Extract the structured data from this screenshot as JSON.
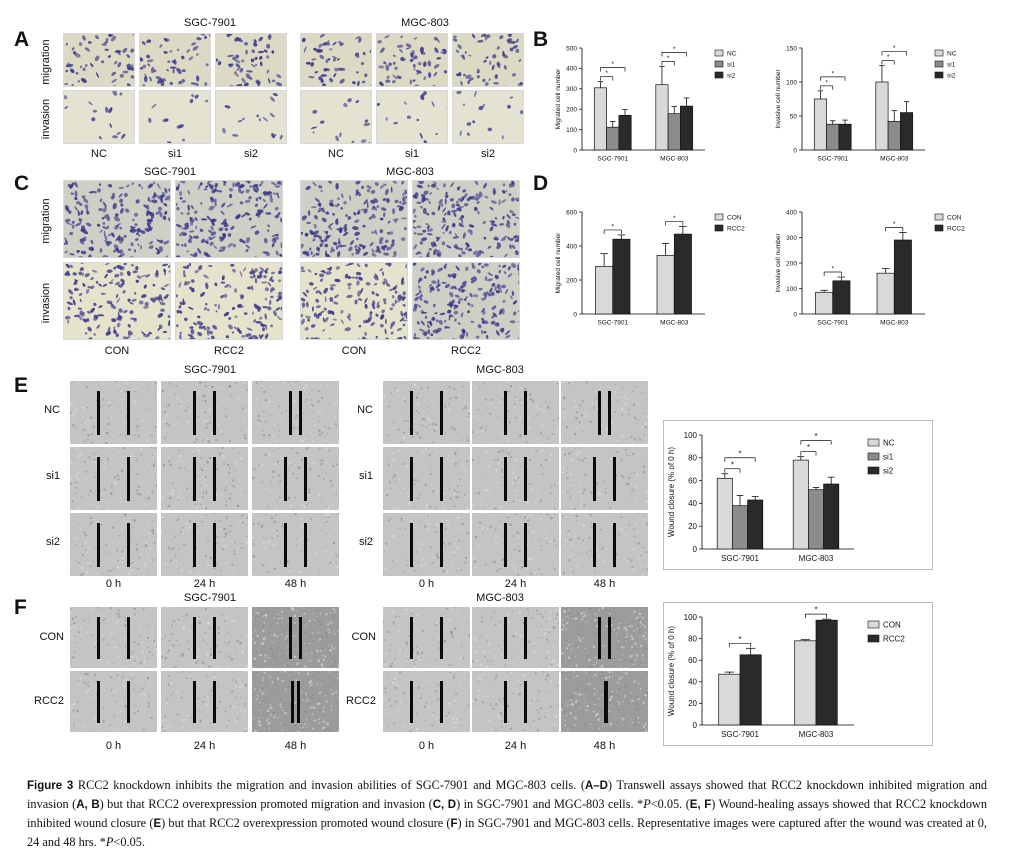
{
  "panels": {
    "A": {
      "letter": "A",
      "headers": [
        "SGC-7901",
        "MGC-803"
      ],
      "row_labels": [
        "migration",
        "invasion"
      ],
      "col_labels": [
        "NC",
        "si1",
        "si2",
        "NC",
        "si1",
        "si2"
      ]
    },
    "B": {
      "letter": "B"
    },
    "C": {
      "letter": "C",
      "headers": [
        "SGC-7901",
        "MGC-803"
      ],
      "row_labels": [
        "migration",
        "invasion"
      ],
      "col_labels": [
        "CON",
        "RCC2",
        "CON",
        "RCC2"
      ]
    },
    "D": {
      "letter": "D"
    },
    "E": {
      "letter": "E",
      "headers": [
        "SGC-7901",
        "MGC-803"
      ],
      "row_labels": [
        "NC",
        "si1",
        "si2"
      ],
      "col_labels": [
        "0 h",
        "24 h",
        "48 h"
      ]
    },
    "F": {
      "letter": "F",
      "headers": [
        "SGC-7901",
        "MGC-803"
      ],
      "row_labels": [
        "CON",
        "RCC2"
      ],
      "col_labels": [
        "0 h",
        "24 h",
        "48 h"
      ]
    }
  },
  "colors": {
    "light_bar": "#d9d9d9",
    "mid_bar": "#8c8c8c",
    "dark_bar": "#2a2a2a",
    "stain": "#3b3a8c"
  },
  "chart_data": [
    {
      "id": "B1",
      "type": "bar",
      "ylabel": "Migrated cell number",
      "categories": [
        "SGC-7901",
        "MGC-803"
      ],
      "ylim": [
        0,
        500
      ],
      "yticks": [
        0,
        100,
        200,
        300,
        400,
        500
      ],
      "series": [
        {
          "name": "NC",
          "values": [
            305,
            320
          ],
          "errors": [
            30,
            90
          ]
        },
        {
          "name": "si1",
          "values": [
            112,
            178
          ],
          "errors": [
            28,
            35
          ]
        },
        {
          "name": "si2",
          "values": [
            170,
            215
          ],
          "errors": [
            28,
            40
          ]
        }
      ],
      "sig": [
        {
          "cat": 0,
          "a": 0,
          "b": 1,
          "level": 0
        },
        {
          "cat": 0,
          "a": 0,
          "b": 2,
          "level": 1
        },
        {
          "cat": 1,
          "a": 0,
          "b": 1,
          "level": 0
        },
        {
          "cat": 1,
          "a": 0,
          "b": 2,
          "level": 1
        }
      ],
      "sig_label": "*",
      "legend": "right"
    },
    {
      "id": "B2",
      "type": "bar",
      "ylabel": "Invasive cell number",
      "categories": [
        "SGC-7901",
        "MGC-803"
      ],
      "ylim": [
        0,
        150
      ],
      "yticks": [
        0,
        50,
        100,
        150
      ],
      "series": [
        {
          "name": "NC",
          "values": [
            75,
            100
          ],
          "errors": [
            12,
            24
          ]
        },
        {
          "name": "si1",
          "values": [
            38,
            42
          ],
          "errors": [
            5,
            16
          ]
        },
        {
          "name": "si2",
          "values": [
            38,
            55
          ],
          "errors": [
            6,
            16
          ]
        }
      ],
      "sig": [
        {
          "cat": 0,
          "a": 0,
          "b": 1,
          "level": 0
        },
        {
          "cat": 0,
          "a": 0,
          "b": 2,
          "level": 1
        },
        {
          "cat": 1,
          "a": 0,
          "b": 1,
          "level": 0
        },
        {
          "cat": 1,
          "a": 0,
          "b": 2,
          "level": 1
        }
      ],
      "sig_label": "*",
      "legend": "right"
    },
    {
      "id": "D1",
      "type": "bar",
      "ylabel": "Migrated cell number",
      "categories": [
        "SGC-7901",
        "MGC-803"
      ],
      "ylim": [
        0,
        600
      ],
      "yticks": [
        0,
        200,
        400,
        600
      ],
      "series": [
        {
          "name": "CON",
          "values": [
            280,
            345
          ],
          "errors": [
            75,
            70
          ]
        },
        {
          "name": "RCC2",
          "values": [
            440,
            470
          ],
          "errors": [
            25,
            45
          ]
        }
      ],
      "sig": [
        {
          "cat": 0,
          "a": 0,
          "b": 1,
          "level": 0
        },
        {
          "cat": 1,
          "a": 0,
          "b": 1,
          "level": 0
        }
      ],
      "sig_label": "*",
      "legend": "right"
    },
    {
      "id": "D2",
      "type": "bar",
      "ylabel": "Invasive cell number",
      "categories": [
        "SGC-7901",
        "MGC-803"
      ],
      "ylim": [
        0,
        400
      ],
      "yticks": [
        0,
        100,
        200,
        300,
        400
      ],
      "series": [
        {
          "name": "CON",
          "values": [
            85,
            160
          ],
          "errors": [
            8,
            18
          ]
        },
        {
          "name": "RCC2",
          "values": [
            130,
            290
          ],
          "errors": [
            15,
            30
          ]
        }
      ],
      "sig": [
        {
          "cat": 0,
          "a": 0,
          "b": 1,
          "level": 0
        },
        {
          "cat": 1,
          "a": 0,
          "b": 1,
          "level": 0
        }
      ],
      "sig_label": "*",
      "legend": "right"
    },
    {
      "id": "E",
      "type": "bar",
      "ylabel": "Wound closure (% of 0 h)",
      "categories": [
        "SGC-7901",
        "MGC-803"
      ],
      "ylim": [
        0,
        100
      ],
      "yticks": [
        0,
        20,
        40,
        60,
        80,
        100
      ],
      "series": [
        {
          "name": "NC",
          "values": [
            62,
            78
          ],
          "errors": [
            4,
            3
          ]
        },
        {
          "name": "si1",
          "values": [
            38,
            52
          ],
          "errors": [
            9,
            2
          ]
        },
        {
          "name": "si2",
          "values": [
            43,
            57
          ],
          "errors": [
            3,
            6
          ]
        }
      ],
      "sig": [
        {
          "cat": 0,
          "a": 0,
          "b": 1,
          "level": 0
        },
        {
          "cat": 0,
          "a": 0,
          "b": 2,
          "level": 1
        },
        {
          "cat": 1,
          "a": 0,
          "b": 1,
          "level": 0
        },
        {
          "cat": 1,
          "a": 0,
          "b": 2,
          "level": 1
        }
      ],
      "sig_label": "*",
      "legend": "right"
    },
    {
      "id": "F",
      "type": "bar",
      "ylabel": "Wound closure (% of 0 h)",
      "categories": [
        "SGC-7901",
        "MGC-803"
      ],
      "ylim": [
        0,
        100
      ],
      "yticks": [
        0,
        20,
        40,
        60,
        80,
        100
      ],
      "series": [
        {
          "name": "CON",
          "values": [
            47,
            78
          ],
          "errors": [
            2,
            1
          ]
        },
        {
          "name": "RCC2",
          "values": [
            65,
            97
          ],
          "errors": [
            6,
            1
          ]
        }
      ],
      "sig": [
        {
          "cat": 0,
          "a": 0,
          "b": 1,
          "level": 0
        },
        {
          "cat": 1,
          "a": 0,
          "b": 1,
          "level": 0
        }
      ],
      "sig_label": "*",
      "legend": "right"
    }
  ],
  "caption": {
    "lead": "Figure 3",
    "segments": [
      {
        "t": " RCC2 knockdown inhibits the migration and invasion abilities of SGC-7901 and MGC-803 cells. ("
      },
      {
        "t": "A–D",
        "b": true
      },
      {
        "t": ") Transwell assays showed that RCC2 knockdown inhibited migration and invasion ("
      },
      {
        "t": "A, B",
        "b": true
      },
      {
        "t": ") but that RCC2 overexpression promoted migration and invasion ("
      },
      {
        "t": "C, D",
        "b": true
      },
      {
        "t": ") in SGC-7901 and MGC-803 cells. *"
      },
      {
        "t": "P",
        "i": true
      },
      {
        "t": "<0.05. ("
      },
      {
        "t": "E, F",
        "b": true
      },
      {
        "t": ") Wound-healing assays showed that RCC2 knockdown inhibited wound closure ("
      },
      {
        "t": "E",
        "b": true
      },
      {
        "t": ") but that RCC2 overexpression promoted wound closure ("
      },
      {
        "t": "F",
        "b": true
      },
      {
        "t": ") in SGC-7901 and MGC-803 cells. Representative images were captured after the wound was created at 0, 24 and 48 hrs. *"
      },
      {
        "t": "P",
        "i": true
      },
      {
        "t": "<0.05."
      }
    ]
  }
}
